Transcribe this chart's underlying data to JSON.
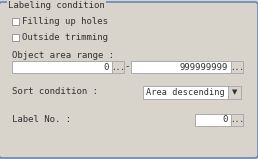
{
  "title": "Labeling condition",
  "bg_color": "#d8d4cc",
  "border_color": "#5577bb",
  "box_bg": "#ffffff",
  "text_color": "#333333",
  "font_family": "monospace",
  "font_size": 6.5,
  "checkbox1_label": "Filling up holes",
  "checkbox2_label": "Outside trimming",
  "area_range_label": "Object area range :",
  "area_val_left": "0",
  "area_val_right": "999999999",
  "sort_label": "Sort condition :",
  "sort_value": "Area descending",
  "label_no_label": "Label No. :",
  "label_no_value": "0",
  "btn_label": "...",
  "dash": "-",
  "arrow": "▼"
}
